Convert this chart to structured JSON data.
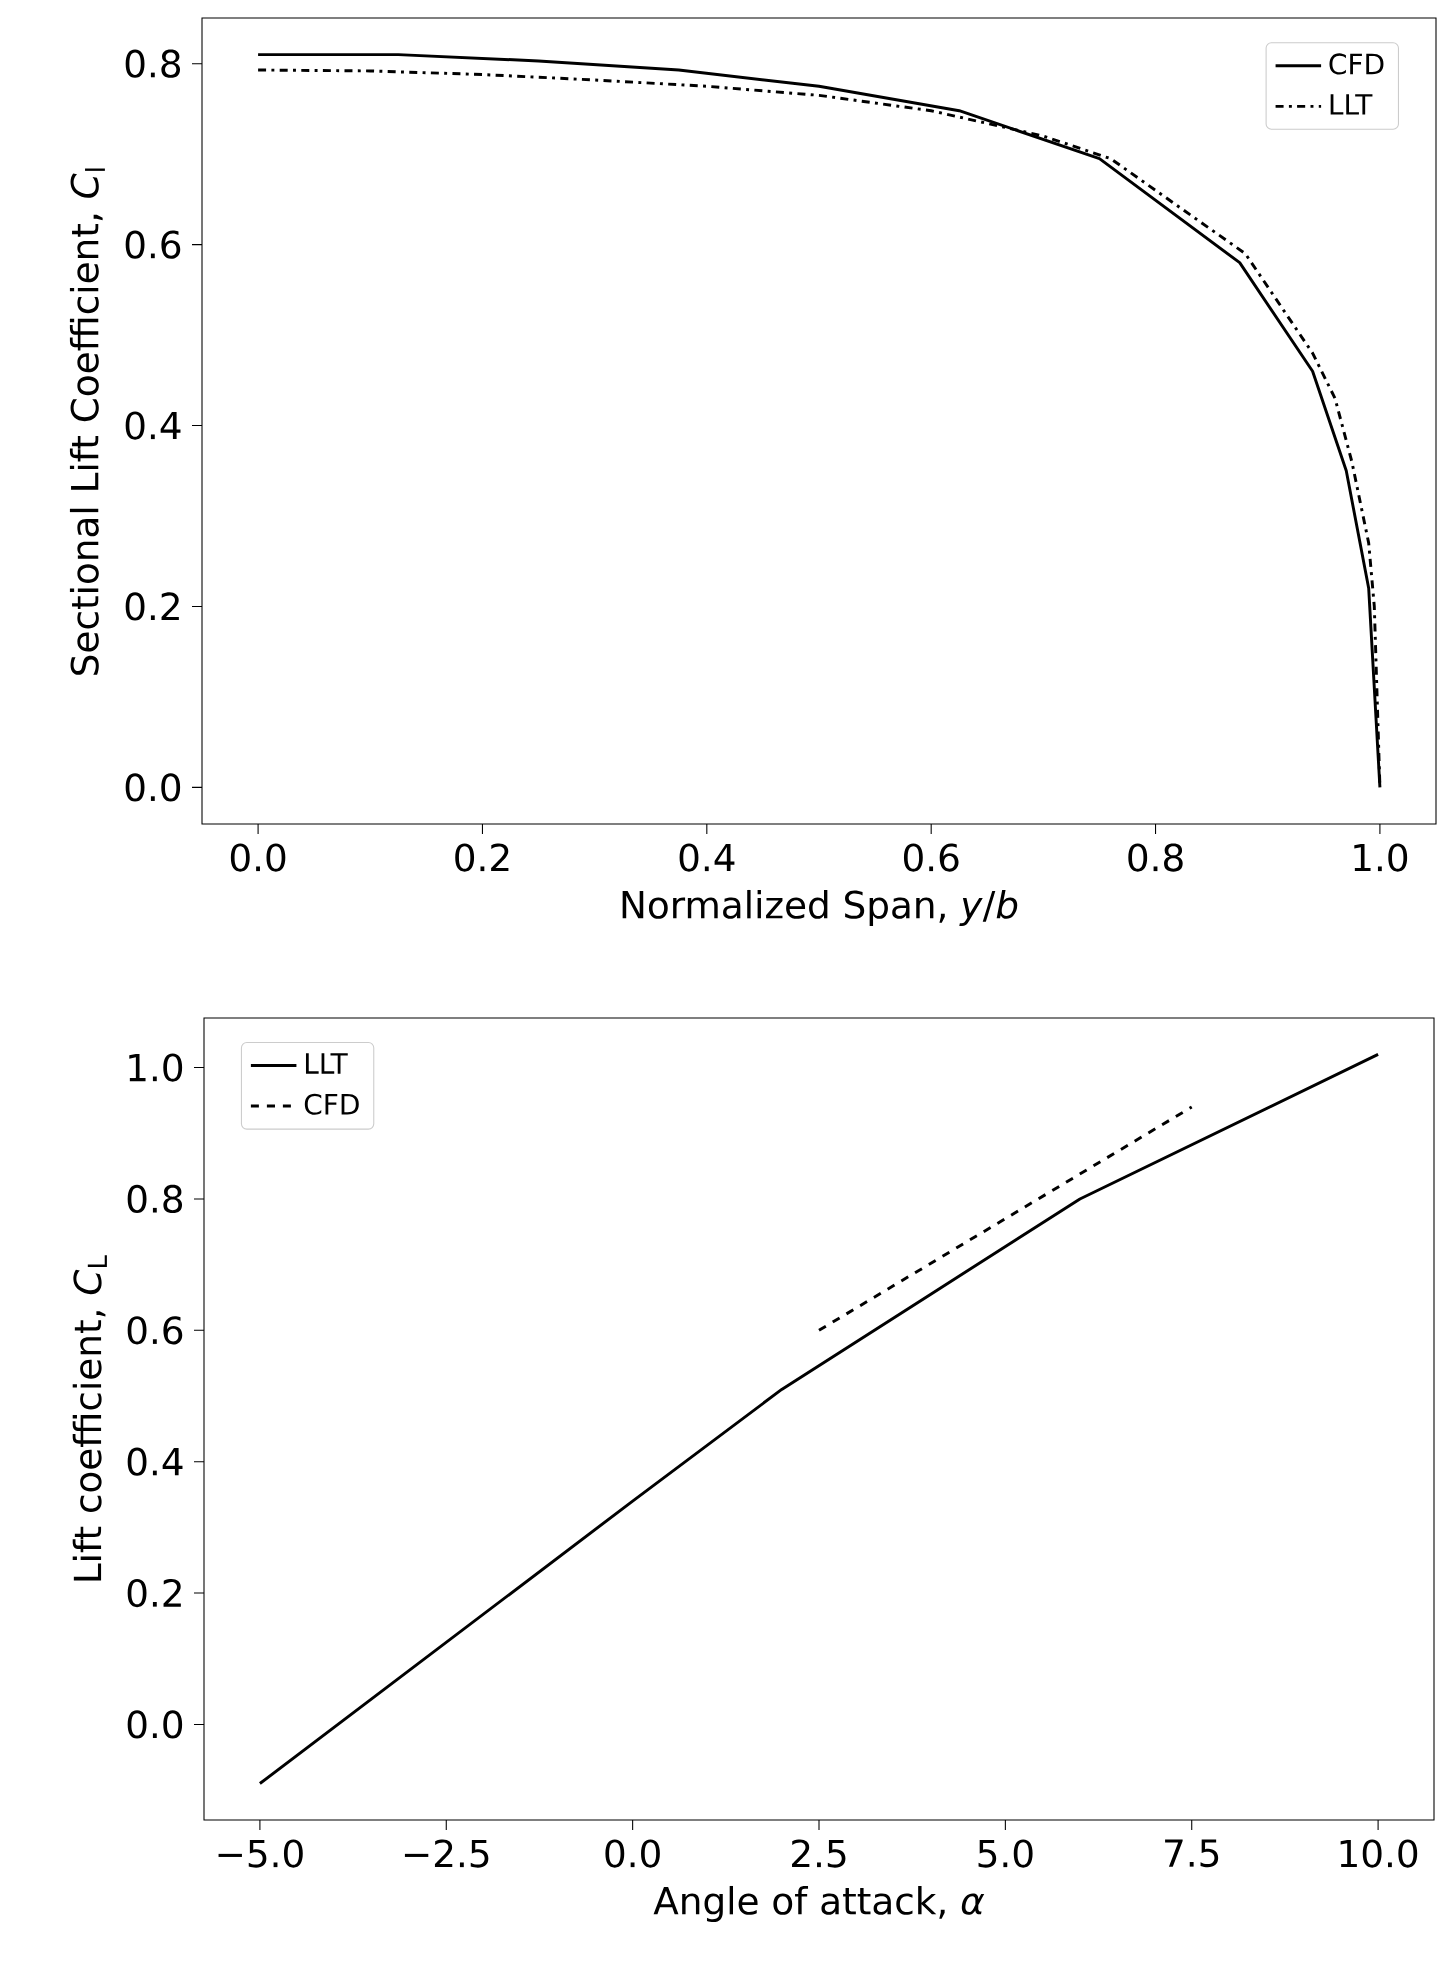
{
  "chart_data": [
    {
      "type": "line",
      "xlabel": "Normalized Span, *y*/*b*",
      "ylabel": "Sectional Lift Coefficient, *C*$_{l}$",
      "legend": "top right",
      "xlim": [
        -0.05,
        1.05
      ],
      "ylim": [
        -0.0405,
        0.8505
      ],
      "xticks": [
        {
          "value": 0,
          "label": "0.0"
        },
        {
          "value": 0.2,
          "label": "0.2"
        },
        {
          "value": 0.4,
          "label": "0.4"
        },
        {
          "value": 0.6,
          "label": "0.6"
        },
        {
          "value": 0.8,
          "label": "0.8"
        },
        {
          "value": 1,
          "label": "1.0"
        }
      ],
      "yticks": [
        {
          "value": 0,
          "label": "0.0"
        },
        {
          "value": 0.2,
          "label": "0.2"
        },
        {
          "value": 0.4,
          "label": "0.4"
        },
        {
          "value": 0.6,
          "label": "0.6"
        },
        {
          "value": 0.8,
          "label": "0.8"
        }
      ],
      "series": [
        {
          "name": "CFD",
          "color": "#000000",
          "line_style": "solid",
          "x": [
            0,
            0.125,
            0.25,
            0.375,
            0.5,
            0.625,
            0.75,
            0.875,
            0.94,
            0.97,
            0.99,
            1.0
          ],
          "values": [
            0.81,
            0.81,
            0.803,
            0.793,
            0.775,
            0.748,
            0.695,
            0.58,
            0.46,
            0.35,
            0.22,
            0.0
          ]
        },
        {
          "name": "LLT",
          "color": "#000000",
          "line_style": "dashdot",
          "x": [
            0,
            0.1,
            0.2,
            0.3,
            0.4,
            0.5,
            0.6,
            0.7,
            0.76,
            0.88,
            0.94,
            0.96,
            0.975,
            0.99,
            0.995,
            1.0
          ],
          "values": [
            0.793,
            0.792,
            0.788,
            0.782,
            0.775,
            0.765,
            0.748,
            0.72,
            0.695,
            0.59,
            0.48,
            0.43,
            0.36,
            0.27,
            0.2,
            0.0
          ]
        }
      ]
    },
    {
      "type": "line",
      "xlabel": "Angle of attack, *α*",
      "ylabel": "Lift coefficient, *C*$_{L}$",
      "legend": "top left",
      "xlim": [
        -5.75,
        10.75
      ],
      "ylim": [
        -0.1455,
        1.0755
      ],
      "xticks": [
        {
          "value": -5,
          "label": "−5.0"
        },
        {
          "value": -2.5,
          "label": "−2.5"
        },
        {
          "value": 0,
          "label": "0.0"
        },
        {
          "value": 2.5,
          "label": "2.5"
        },
        {
          "value": 5,
          "label": "5.0"
        },
        {
          "value": 7.5,
          "label": "7.5"
        },
        {
          "value": 10,
          "label": "10.0"
        }
      ],
      "yticks": [
        {
          "value": 0,
          "label": "0.0"
        },
        {
          "value": 0.2,
          "label": "0.2"
        },
        {
          "value": 0.4,
          "label": "0.4"
        },
        {
          "value": 0.6,
          "label": "0.6"
        },
        {
          "value": 0.8,
          "label": "0.8"
        },
        {
          "value": 1,
          "label": "1.0"
        }
      ],
      "series": [
        {
          "name": "LLT",
          "color": "#000000",
          "line_style": "solid",
          "x": [
            -5,
            0,
            2,
            4,
            6,
            10
          ],
          "values": [
            -0.09,
            0.34,
            0.51,
            0.655,
            0.8,
            1.02
          ]
        },
        {
          "name": "CFD",
          "color": "#000000",
          "line_style": "dashed",
          "x": [
            2.5,
            7.5
          ],
          "values": [
            0.6,
            0.94
          ]
        }
      ]
    }
  ]
}
